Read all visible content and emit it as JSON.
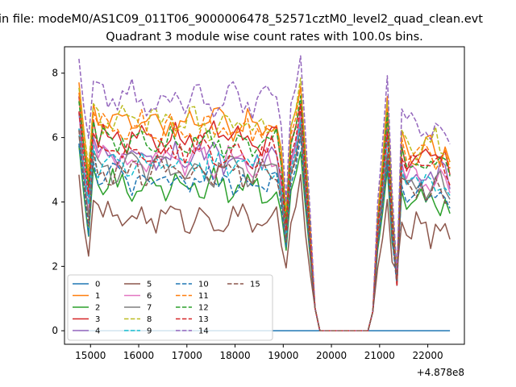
{
  "figure_title": "in file: modeM0/AS1C09_011T06_9000006478_52571cztM0_level2_quad_clean.evt",
  "chart_data": {
    "type": "line",
    "title": "Quadrant 3 module wise count rates with 100.0s bins.",
    "xlabel": "",
    "ylabel": "",
    "x_offset_label": "+4.878e8",
    "xlim": [
      14460,
      22760
    ],
    "ylim": [
      -0.42,
      8.82
    ],
    "x_ticks": [
      15000,
      16000,
      17000,
      18000,
      19000,
      20000,
      21000,
      22000
    ],
    "y_ticks": [
      0,
      2,
      4,
      6,
      8
    ],
    "x_tick_labels": [
      "15000",
      "16000",
      "17000",
      "18000",
      "19000",
      "20000",
      "21000",
      "22000"
    ],
    "y_tick_labels": [
      "0",
      "2",
      "4",
      "6",
      "8"
    ],
    "grid": false,
    "legend_position": "lower-left",
    "legend_columns": 4,
    "x_start": 14760,
    "x_step": 100,
    "segment_1_points": 51,
    "gap_end_x": 20760,
    "segment_2_points": 18,
    "series": [
      {
        "name": "0",
        "color": "#1f77b4",
        "dash": "solid",
        "base": 0.0,
        "amp": 0.0,
        "phase": 0.0
      },
      {
        "name": "1",
        "color": "#ff7f0e",
        "dash": "solid",
        "base": 6.55,
        "amp": 0.28,
        "phase": 0.4
      },
      {
        "name": "2",
        "color": "#2ca02c",
        "dash": "solid",
        "base": 4.55,
        "amp": 0.3,
        "phase": 1.1
      },
      {
        "name": "3",
        "color": "#d62728",
        "dash": "solid",
        "base": 6.05,
        "amp": 0.25,
        "phase": 2.0
      },
      {
        "name": "4",
        "color": "#9467bd",
        "dash": "solid",
        "base": 5.5,
        "amp": 0.25,
        "phase": 2.7
      },
      {
        "name": "5",
        "color": "#8c564b",
        "dash": "solid",
        "base": 3.55,
        "amp": 0.2,
        "phase": 3.3
      },
      {
        "name": "6",
        "color": "#e377c2",
        "dash": "solid",
        "base": 5.35,
        "amp": 0.25,
        "phase": 4.1
      },
      {
        "name": "7",
        "color": "#7f7f7f",
        "dash": "solid",
        "base": 5.1,
        "amp": 0.25,
        "phase": 4.8
      },
      {
        "name": "8",
        "color": "#bcbd22",
        "dash": "dashed",
        "base": 6.55,
        "amp": 0.25,
        "phase": 5.5
      },
      {
        "name": "9",
        "color": "#17becf",
        "dash": "dashed",
        "base": 5.25,
        "amp": 0.25,
        "phase": 0.9
      },
      {
        "name": "10",
        "color": "#1f77b4",
        "dash": "dashed",
        "base": 4.75,
        "amp": 0.22,
        "phase": 1.6
      },
      {
        "name": "11",
        "color": "#ff7f0e",
        "dash": "dashed",
        "base": 6.3,
        "amp": 0.25,
        "phase": 2.3
      },
      {
        "name": "12",
        "color": "#2ca02c",
        "dash": "dashed",
        "base": 6.0,
        "amp": 0.25,
        "phase": 3.0
      },
      {
        "name": "13",
        "color": "#d62728",
        "dash": "dashed",
        "base": 5.65,
        "amp": 0.22,
        "phase": 3.7
      },
      {
        "name": "14",
        "color": "#9467bd",
        "dash": "dashed",
        "base": 7.25,
        "amp": 0.3,
        "phase": 4.4
      },
      {
        "name": "15",
        "color": "#8c564b",
        "dash": "dashed",
        "base": 5.0,
        "amp": 0.22,
        "phase": 5.1
      }
    ]
  }
}
